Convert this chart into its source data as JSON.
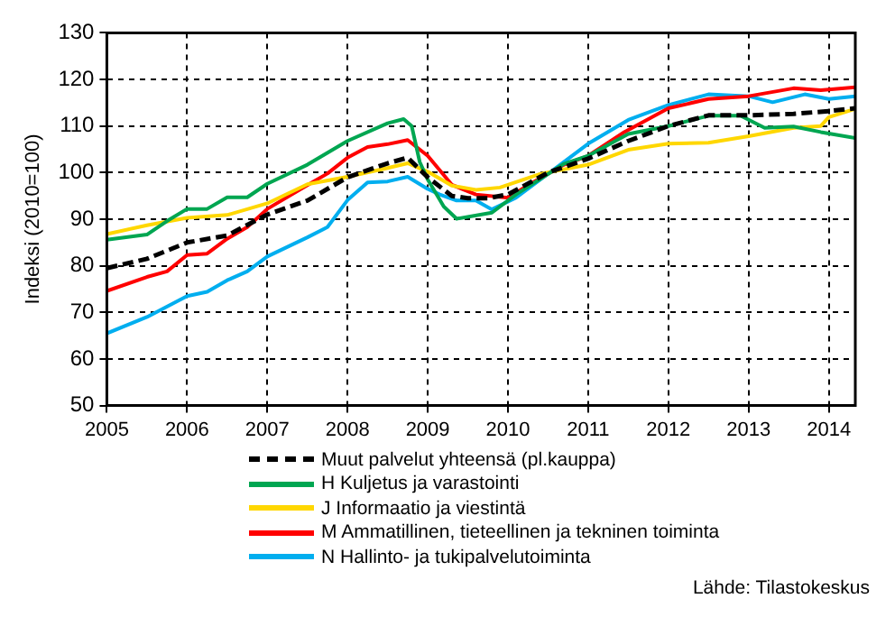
{
  "chart_data": {
    "type": "line",
    "ylabel": "Indeksi (2010=100)",
    "xlim": [
      2005,
      2014.33
    ],
    "xticks": [
      2005,
      2006,
      2007,
      2008,
      2009,
      2010,
      2011,
      2012,
      2013,
      2014
    ],
    "ylim": [
      50,
      130
    ],
    "yticks": [
      50,
      60,
      70,
      80,
      90,
      100,
      110,
      120,
      130
    ],
    "grid": true,
    "legend": "bottom",
    "marker": "none",
    "annotations": [
      "Lähde: Tilastokeskus"
    ],
    "series": [
      {
        "name": "Muut palvelut yhteensä (pl.kauppa)",
        "color": "#000000",
        "line_style": "dashed",
        "x": [
          2005,
          2005.5,
          2006,
          2006.5,
          2007,
          2007.5,
          2008,
          2008.5,
          2008.75,
          2009,
          2009.3,
          2009.5,
          2009.75,
          2010,
          2010.5,
          2011,
          2011.5,
          2012,
          2012.5,
          2013,
          2013.56,
          2014,
          2014.33
        ],
        "values": [
          79.5,
          81.5,
          85,
          86.5,
          91,
          94,
          99,
          102,
          103.2,
          99,
          95,
          94.5,
          94.5,
          95.3,
          100,
          103,
          106.8,
          110,
          112.3,
          112.3,
          112.6,
          113.2,
          113.8
        ]
      },
      {
        "name": "H Kuljetus ja varastointi",
        "color": "#00a651",
        "line_style": "solid",
        "x": [
          2005,
          2005.5,
          2005.75,
          2006,
          2006.25,
          2006.5,
          2006.75,
          2007,
          2007.5,
          2008,
          2008.5,
          2008.7,
          2008.8,
          2008.9,
          2009,
          2009.2,
          2009.36,
          2009.8,
          2010.1,
          2010.7,
          2011,
          2011.5,
          2012,
          2012.5,
          2012.9,
          2013.2,
          2013.56,
          2013.9,
          2014.33
        ],
        "values": [
          85.6,
          86.7,
          89.6,
          92.2,
          92.2,
          94.7,
          94.7,
          97.6,
          101.7,
          106.8,
          110.6,
          111.5,
          110,
          102.3,
          98.5,
          92.7,
          90.1,
          91.4,
          95.3,
          101.9,
          103.6,
          108.3,
          110,
          112.2,
          112.2,
          109.6,
          109.9,
          108.7,
          107.4
        ]
      },
      {
        "name": "J Informaatio ja viestintä",
        "color": "#ffd700",
        "line_style": "solid",
        "x": [
          2005,
          2005.5,
          2006,
          2006.5,
          2007,
          2007.5,
          2008,
          2008.5,
          2008.75,
          2009,
          2009.3,
          2009.6,
          2009.9,
          2010.4,
          2011,
          2011.5,
          2012,
          2012.5,
          2013,
          2013.56,
          2013.9,
          2014,
          2014.33
        ],
        "values": [
          86.8,
          88.7,
          90.3,
          90.9,
          93.4,
          97.5,
          99.1,
          101,
          102,
          100.2,
          97.2,
          96.3,
          96.8,
          99.7,
          101.7,
          104.9,
          106.2,
          106.4,
          107.8,
          109.6,
          110,
          111.9,
          113.7
        ]
      },
      {
        "name": "M Ammatillinen, tieteellinen ja tekninen toiminta",
        "color": "#ff0000",
        "line_style": "solid",
        "x": [
          2005,
          2005.5,
          2005.75,
          2006,
          2006.25,
          2006.5,
          2006.75,
          2007,
          2007.5,
          2007.75,
          2008,
          2008.25,
          2008.5,
          2008.75,
          2009,
          2009.3,
          2009.6,
          2010,
          2010.3,
          2010.7,
          2011,
          2011.45,
          2012,
          2012.5,
          2013,
          2013.56,
          2013.9,
          2014.33
        ],
        "values": [
          74.6,
          77.6,
          78.8,
          82.3,
          82.6,
          85.8,
          88.3,
          92.2,
          97.3,
          99.8,
          103.2,
          105.5,
          106.1,
          107,
          103.6,
          97.4,
          95.3,
          94.6,
          97.8,
          101.7,
          103.6,
          108.7,
          113.8,
          115.8,
          116.4,
          118.1,
          117.7,
          118.3
        ]
      },
      {
        "name": "N Hallinto- ja tukipalvelutoiminta",
        "color": "#00aeef",
        "line_style": "solid",
        "x": [
          2005,
          2005.5,
          2006,
          2006.25,
          2006.5,
          2006.75,
          2007,
          2007.5,
          2007.75,
          2008,
          2008.25,
          2008.5,
          2008.75,
          2009,
          2009.15,
          2009.36,
          2009.6,
          2009.8,
          2010.1,
          2010.7,
          2011,
          2011.5,
          2012,
          2012.5,
          2013,
          2013.3,
          2013.7,
          2014,
          2014.33
        ],
        "values": [
          65.5,
          69,
          73.5,
          74.4,
          76.9,
          78.8,
          82,
          86.1,
          88.3,
          94.1,
          97.9,
          98.1,
          99.1,
          96.5,
          95.3,
          94,
          94,
          92.1,
          94.6,
          102.3,
          106.2,
          111.3,
          114.5,
          116.8,
          116.4,
          115.1,
          116.8,
          115.8,
          116.4
        ]
      }
    ]
  }
}
